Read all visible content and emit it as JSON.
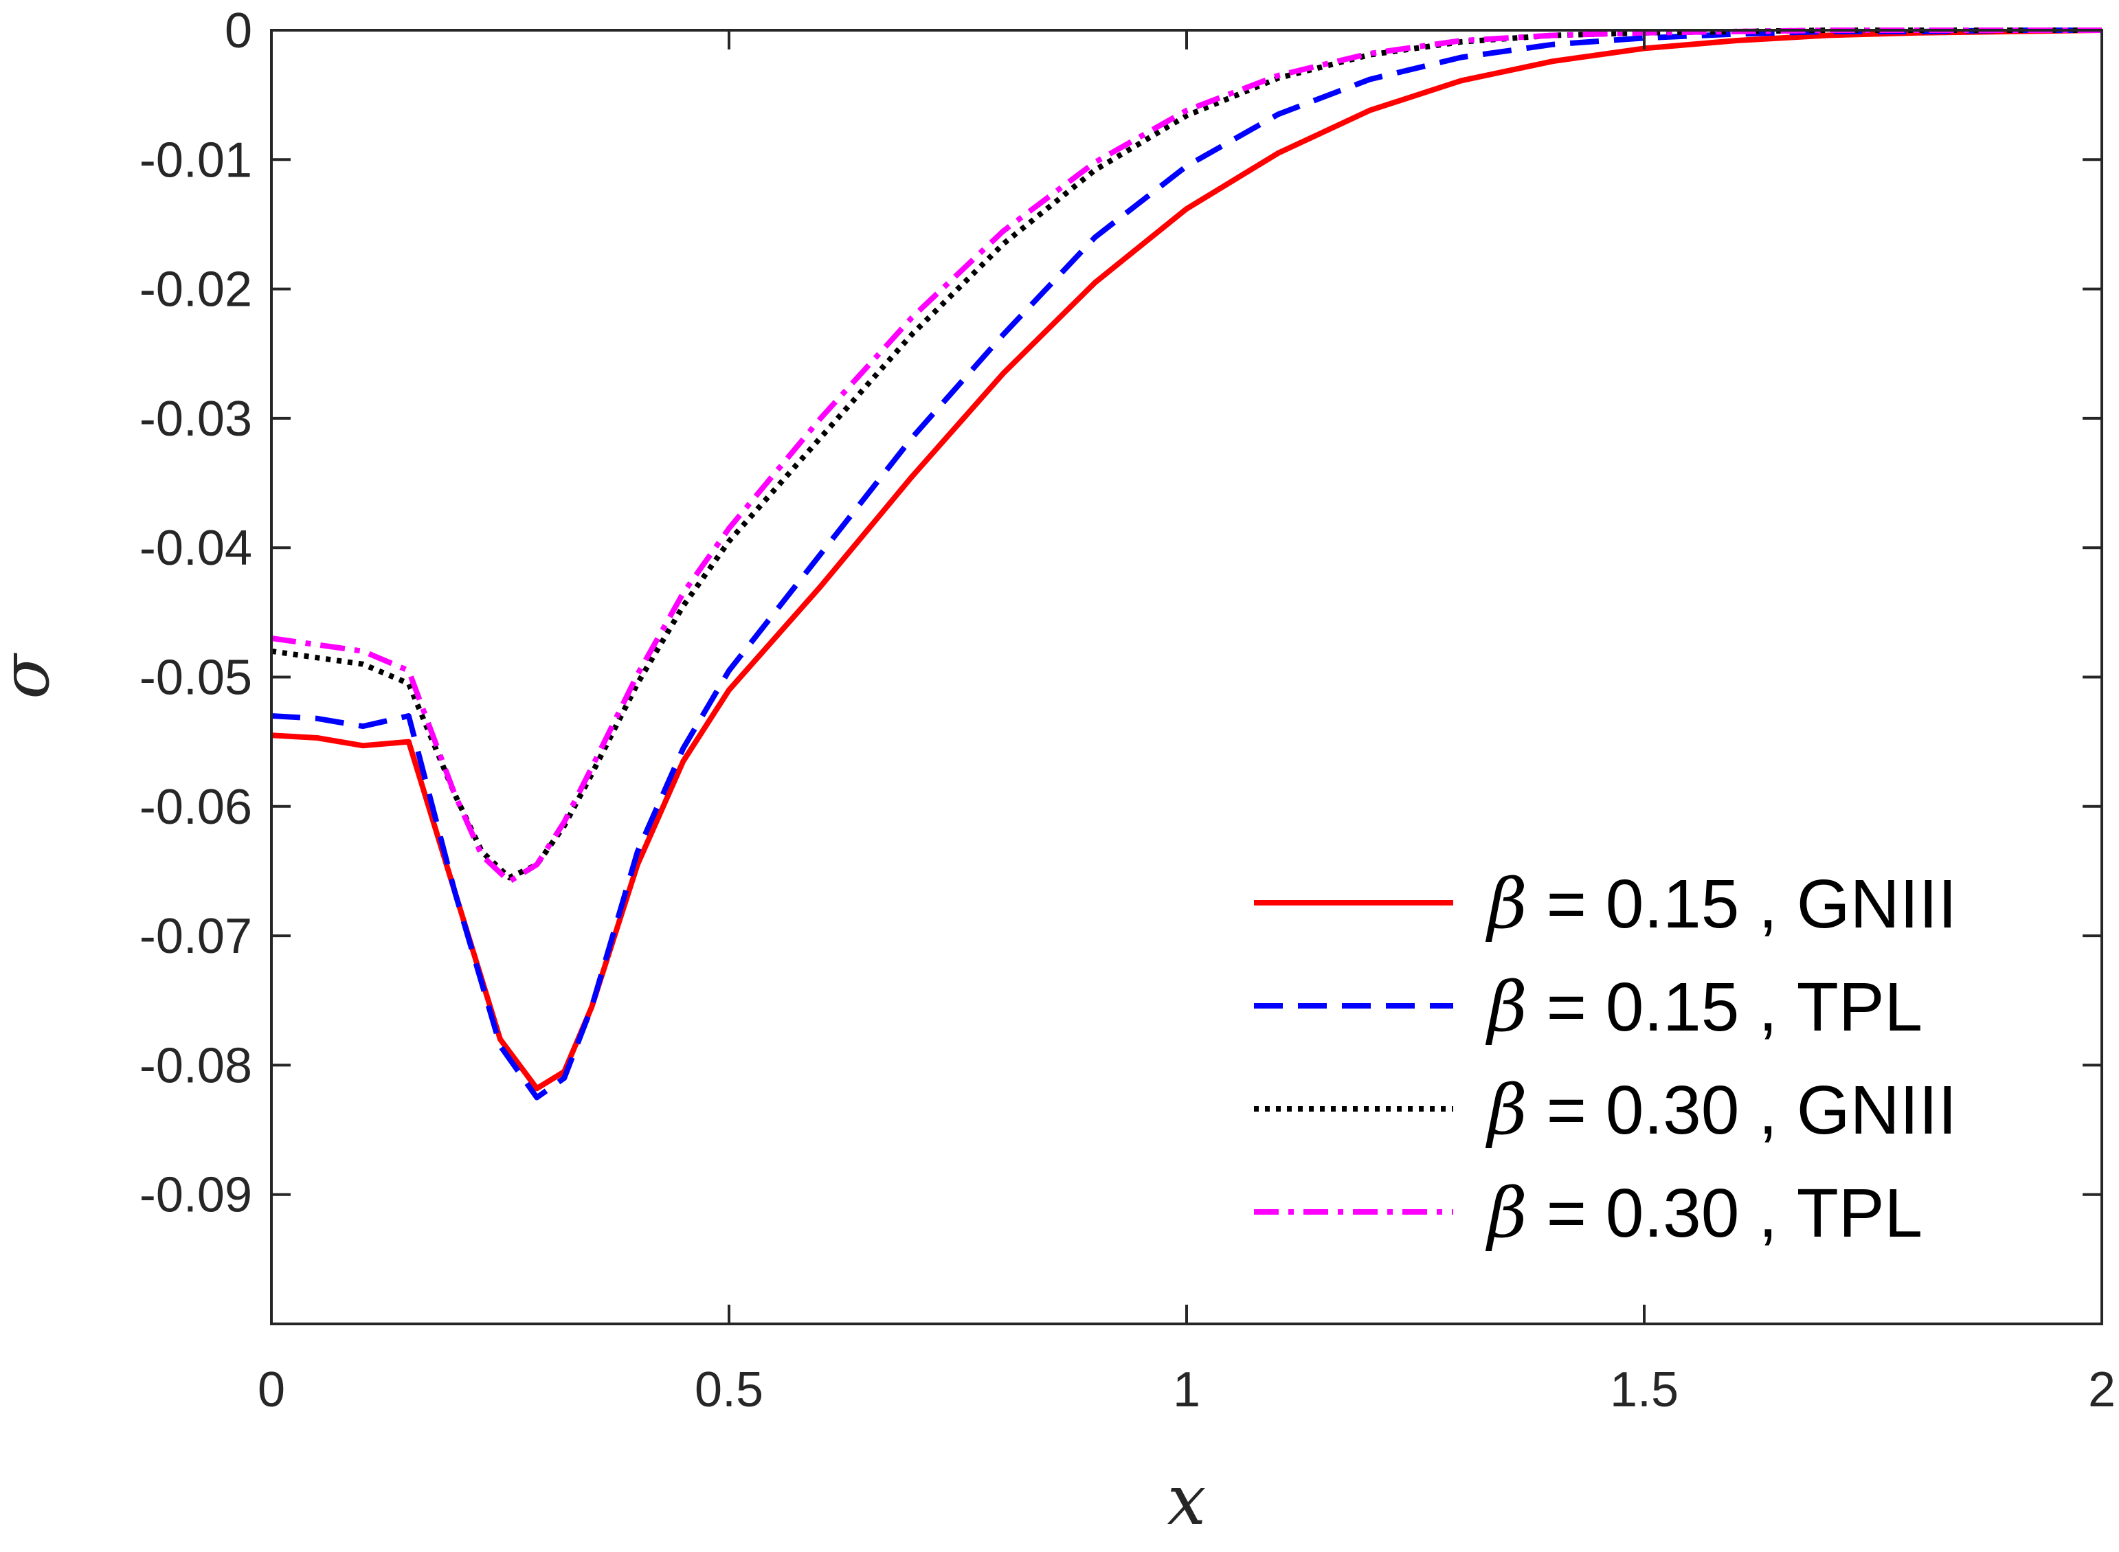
{
  "chart_data": {
    "type": "line",
    "title": "",
    "xlabel": "x",
    "ylabel": "σ",
    "xlim": [
      0,
      2
    ],
    "ylim": [
      -0.1,
      0
    ],
    "xticks": [
      0,
      0.5,
      1,
      1.5,
      2
    ],
    "xtick_labels": [
      "0",
      "0.5",
      "1",
      "1.5",
      "2"
    ],
    "yticks": [
      0,
      -0.01,
      -0.02,
      -0.03,
      -0.04,
      -0.05,
      -0.06,
      -0.07,
      -0.08,
      -0.09
    ],
    "ytick_labels": [
      "0",
      "-0.01",
      "-0.02",
      "-0.03",
      "-0.04",
      "-0.05",
      "-0.06",
      "-0.07",
      "-0.08",
      "-0.09"
    ],
    "grid": false,
    "legend_position": "bottom-right",
    "series": [
      {
        "name": "β = 0.15 , GNIII",
        "legend_symbol": "β",
        "legend_rest": " = 0.15 , GNIII",
        "color": "#ff0000",
        "dash": "solid",
        "x": [
          0,
          0.05,
          0.1,
          0.15,
          0.2,
          0.25,
          0.29,
          0.32,
          0.35,
          0.4,
          0.45,
          0.5,
          0.6,
          0.7,
          0.8,
          0.9,
          1.0,
          1.1,
          1.2,
          1.3,
          1.4,
          1.5,
          1.6,
          1.7,
          1.8,
          1.9,
          2.0
        ],
        "y": [
          -0.0545,
          -0.0547,
          -0.0553,
          -0.055,
          -0.0665,
          -0.078,
          -0.0818,
          -0.0805,
          -0.0755,
          -0.0645,
          -0.0565,
          -0.051,
          -0.043,
          -0.0345,
          -0.0265,
          -0.0195,
          -0.0138,
          -0.0095,
          -0.0062,
          -0.0039,
          -0.0024,
          -0.0014,
          -0.0008,
          -0.0004,
          -0.0002,
          -0.0001,
          0
        ]
      },
      {
        "name": "β = 0.15 , TPL",
        "legend_symbol": "β",
        "legend_rest": " = 0.15 , TPL",
        "color": "#0000ff",
        "dash": "dashed",
        "x": [
          0,
          0.05,
          0.1,
          0.15,
          0.2,
          0.25,
          0.29,
          0.32,
          0.35,
          0.4,
          0.45,
          0.5,
          0.6,
          0.7,
          0.8,
          0.9,
          1.0,
          1.1,
          1.2,
          1.3,
          1.4,
          1.5,
          1.6,
          1.7,
          1.8,
          1.9,
          2.0
        ],
        "y": [
          -0.053,
          -0.0532,
          -0.0538,
          -0.053,
          -0.0665,
          -0.0785,
          -0.0825,
          -0.081,
          -0.0755,
          -0.0635,
          -0.0555,
          -0.0495,
          -0.0405,
          -0.0315,
          -0.0235,
          -0.016,
          -0.0105,
          -0.0065,
          -0.0038,
          -0.0021,
          -0.0011,
          -0.0006,
          -0.0003,
          -0.0001,
          -0.0001,
          0,
          0
        ]
      },
      {
        "name": "β = 0.30 , GNIII",
        "legend_symbol": "β",
        "legend_rest": " = 0.30 , GNIII",
        "color": "#000000",
        "dash": "dotted",
        "x": [
          0,
          0.05,
          0.1,
          0.15,
          0.2,
          0.23,
          0.26,
          0.29,
          0.32,
          0.35,
          0.4,
          0.45,
          0.5,
          0.6,
          0.7,
          0.8,
          0.9,
          1.0,
          1.1,
          1.2,
          1.3,
          1.4,
          1.5,
          1.6,
          1.7,
          1.8,
          1.9,
          2.0
        ],
        "y": [
          -0.048,
          -0.0485,
          -0.049,
          -0.0505,
          -0.059,
          -0.0635,
          -0.0655,
          -0.0645,
          -0.0615,
          -0.0575,
          -0.0505,
          -0.0445,
          -0.0395,
          -0.0315,
          -0.0235,
          -0.0165,
          -0.0108,
          -0.0066,
          -0.0037,
          -0.0019,
          -0.0009,
          -0.0004,
          -0.0002,
          -0.0001,
          0,
          0,
          0,
          0
        ]
      },
      {
        "name": "β = 0.30 , TPL",
        "legend_symbol": "β",
        "legend_rest": " = 0.30 , TPL",
        "color": "#ff00ff",
        "dash": "dashdot",
        "x": [
          0,
          0.05,
          0.1,
          0.15,
          0.2,
          0.23,
          0.26,
          0.29,
          0.32,
          0.35,
          0.4,
          0.45,
          0.5,
          0.6,
          0.7,
          0.8,
          0.9,
          1.0,
          1.1,
          1.2,
          1.3,
          1.4,
          1.5,
          1.6,
          1.7,
          1.8,
          1.9,
          2.0
        ],
        "y": [
          -0.047,
          -0.0475,
          -0.048,
          -0.0495,
          -0.059,
          -0.0638,
          -0.0658,
          -0.0645,
          -0.0612,
          -0.057,
          -0.0498,
          -0.0435,
          -0.0385,
          -0.03,
          -0.0222,
          -0.0155,
          -0.0102,
          -0.0062,
          -0.0035,
          -0.0018,
          -0.0008,
          -0.0004,
          -0.0002,
          -0.0001,
          0,
          0,
          0,
          0
        ]
      }
    ]
  }
}
